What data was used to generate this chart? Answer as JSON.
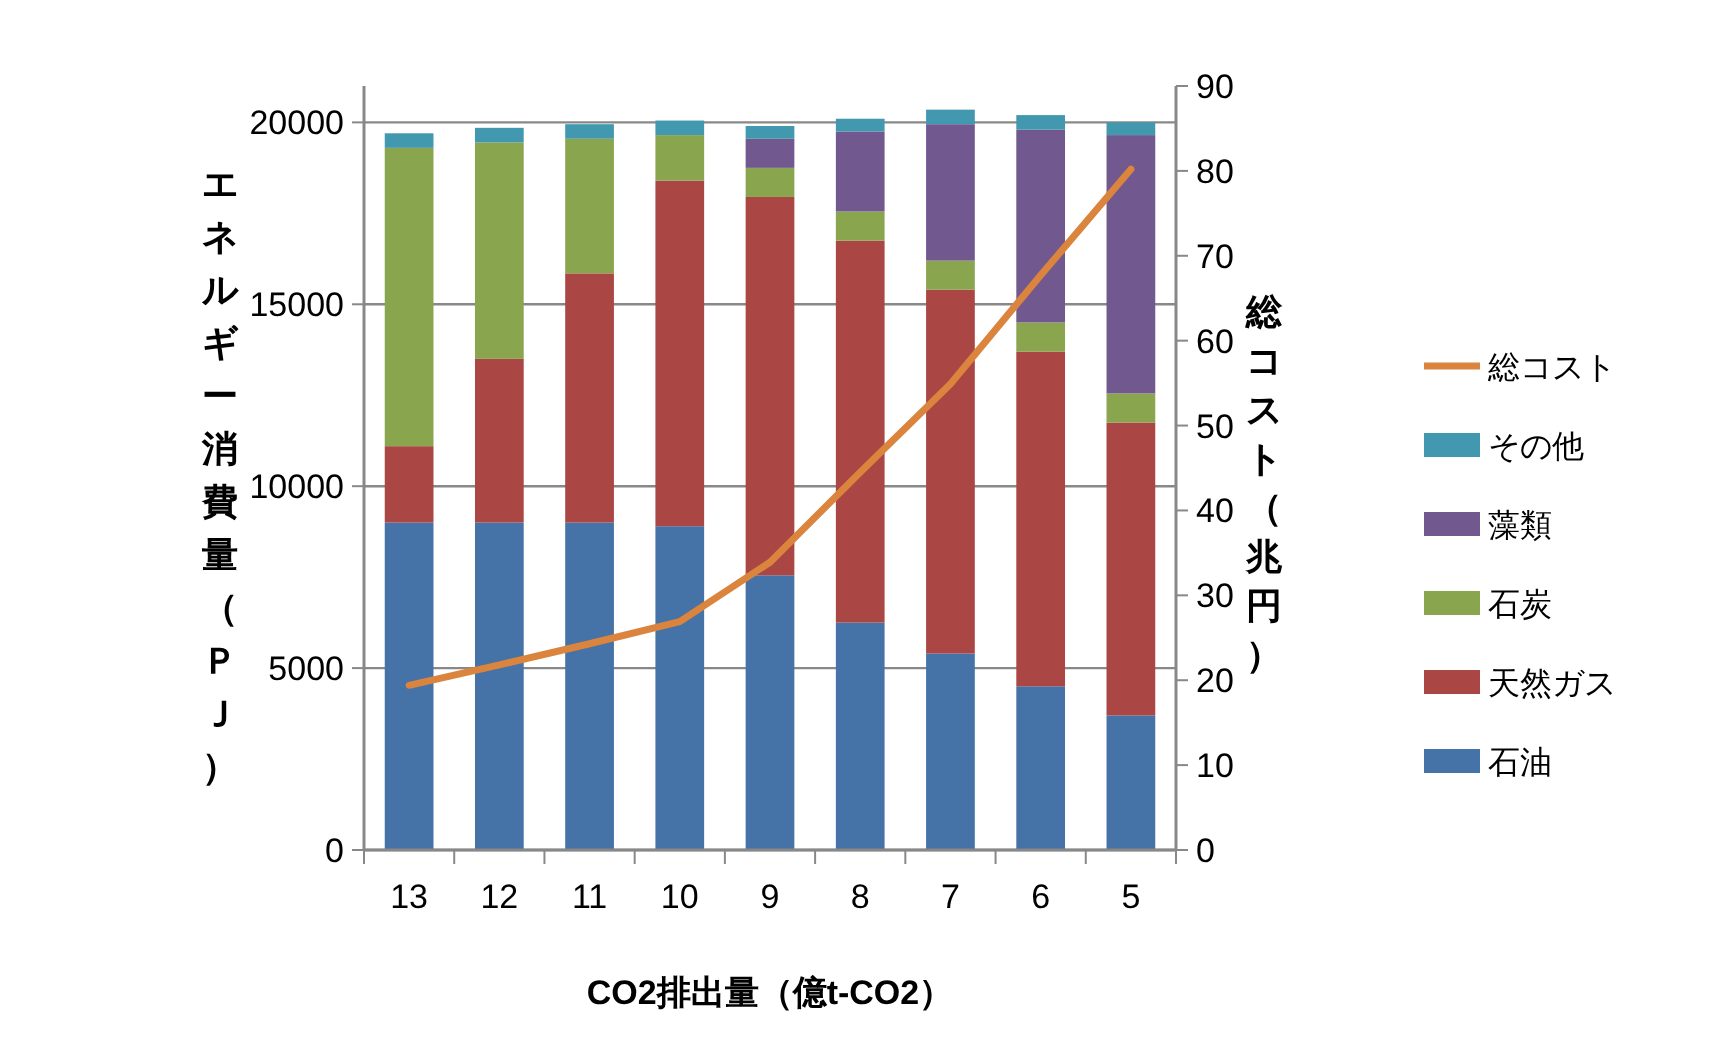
{
  "chart_data": {
    "type": "bar",
    "stacked": true,
    "xlabel": "CO2排出量（億t-CO2）",
    "ylabel": "エネルギー消費量（ＰＪ）",
    "y2label": "総コスト（兆円）",
    "categories": [
      "13",
      "12",
      "11",
      "10",
      "9",
      "8",
      "7",
      "6",
      "5"
    ],
    "ylim": [
      0,
      21000
    ],
    "yticks": [
      0,
      5000,
      10000,
      15000,
      20000
    ],
    "y2lim": [
      0,
      90
    ],
    "y2ticks": [
      0,
      10,
      20,
      30,
      40,
      50,
      60,
      70,
      80,
      90
    ],
    "grid": "y",
    "legend": "right",
    "series": [
      {
        "name": "石油",
        "color": "#4572a7",
        "values": [
          9000,
          9000,
          9000,
          8900,
          7550,
          6250,
          5400,
          4500,
          3700
        ]
      },
      {
        "name": "天然ガス",
        "color": "#aa4643",
        "values": [
          2100,
          4500,
          6850,
          9500,
          10400,
          10500,
          10000,
          9200,
          8050
        ]
      },
      {
        "name": "石炭",
        "color": "#89a54e",
        "values": [
          8200,
          5950,
          3700,
          1250,
          800,
          800,
          800,
          800,
          800
        ]
      },
      {
        "name": "藻類",
        "color": "#71588f",
        "values": [
          0,
          0,
          0,
          0,
          800,
          2200,
          3750,
          5300,
          7100
        ]
      },
      {
        "name": "その他",
        "color": "#4198af",
        "values": [
          400,
          400,
          400,
          400,
          350,
          350,
          400,
          400,
          350
        ]
      },
      {
        "name": "総コスト",
        "type": "line",
        "axis": "y2",
        "color": "#db843d",
        "values": [
          19.4,
          21.8,
          24.3,
          26.9,
          33.9,
          44.5,
          54.9,
          67.7,
          80.2
        ]
      }
    ]
  }
}
